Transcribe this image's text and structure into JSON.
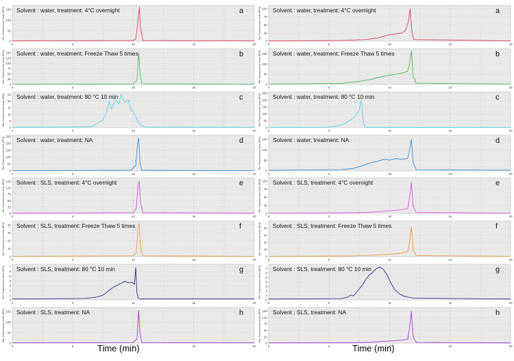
{
  "figure": {
    "x_axis_title": "Time (min)",
    "y_axis_label": "Rel. Fluorescence Units (RFU)",
    "x_ticks": [
      "0",
      "5",
      "10",
      "15",
      "20"
    ]
  },
  "chart_data": [
    {
      "type": "line",
      "column": "left",
      "letter": "a",
      "label": "Solvent : water, treatment: 4°C overnight",
      "color": "#e0405a",
      "xlim": [
        0,
        20
      ],
      "ylim": [
        0,
        170
      ],
      "yticks": [
        "0",
        "50",
        "100",
        "150"
      ],
      "series": [
        {
          "x": [
            0,
            10.0,
            10.2,
            10.35,
            10.5,
            10.6,
            10.8,
            20
          ],
          "y": [
            2,
            3,
            10,
            80,
            162,
            60,
            3,
            2
          ]
        }
      ]
    },
    {
      "type": "line",
      "column": "left",
      "letter": "b",
      "label": "Solvent : water, treatment: Freeze Thaw 5 times",
      "color": "#4fb860",
      "xlim": [
        0,
        20
      ],
      "ylim": [
        0,
        170
      ],
      "yticks": [
        "0",
        "25",
        "50",
        "75",
        "100",
        "125",
        "150"
      ],
      "series": [
        {
          "x": [
            0,
            10.0,
            10.3,
            10.45,
            10.55,
            10.7,
            20
          ],
          "y": [
            1,
            2,
            20,
            150,
            60,
            3,
            1
          ]
        }
      ]
    },
    {
      "type": "line",
      "column": "left",
      "letter": "c",
      "label": "Solvent : water, treatment: 80 °C 10 min",
      "color": "#5ad8e8",
      "xlim": [
        0,
        20
      ],
      "ylim": [
        0,
        27
      ],
      "yticks": [
        "0",
        "5",
        "10",
        "15",
        "20",
        "25"
      ],
      "series": [
        {
          "x": [
            0,
            6.5,
            7.0,
            7.5,
            7.8,
            8.0,
            8.2,
            8.5,
            8.8,
            9.0,
            9.3,
            9.6,
            9.8,
            10.0,
            10.3,
            10.6,
            11,
            20
          ],
          "y": [
            0.3,
            0.6,
            3,
            6,
            12,
            20,
            14,
            22,
            18,
            25,
            19,
            21,
            14,
            12,
            6,
            2,
            0.5,
            0.3
          ]
        }
      ]
    },
    {
      "type": "line",
      "column": "left",
      "letter": "d",
      "label": "Solvent : water, treatment: NA",
      "color": "#3d8fd0",
      "xlim": [
        0,
        20
      ],
      "ylim": [
        0,
        260
      ],
      "yticks": [
        "0",
        "50",
        "100",
        "150",
        "200",
        "250"
      ],
      "series": [
        {
          "x": [
            0,
            9.8,
            10.2,
            10.35,
            10.45,
            10.55,
            10.7,
            20
          ],
          "y": [
            2,
            5,
            40,
            200,
            240,
            60,
            5,
            2
          ]
        }
      ]
    },
    {
      "type": "line",
      "column": "left",
      "letter": "e",
      "label": "Solvent : SLS, treatment: 4°C overnight",
      "color": "#d84ee0",
      "xlim": [
        0,
        20
      ],
      "ylim": [
        0,
        140
      ],
      "yticks": [
        "0",
        "25",
        "50",
        "75",
        "100",
        "125"
      ],
      "series": [
        {
          "x": [
            0,
            10.0,
            10.25,
            10.4,
            10.5,
            10.6,
            10.8,
            20
          ],
          "y": [
            1,
            3,
            20,
            115,
            125,
            40,
            3,
            1
          ]
        }
      ]
    },
    {
      "type": "line",
      "column": "left",
      "letter": "f",
      "label": "Solvent : SLS, treatment: Freeze Thaw 5 times",
      "color": "#f0a040",
      "xlim": [
        0,
        20
      ],
      "ylim": [
        0,
        45
      ],
      "yticks": [
        "0",
        "10",
        "20",
        "30",
        "40"
      ],
      "series": [
        {
          "x": [
            0,
            10.0,
            10.25,
            10.4,
            10.5,
            10.6,
            10.8,
            20
          ],
          "y": [
            0.5,
            1,
            5,
            38,
            42,
            10,
            1,
            0.5
          ]
        }
      ]
    },
    {
      "type": "line",
      "column": "left",
      "letter": "g",
      "label": "Solvent : SLS, treatment: 80 °C 10 min",
      "color": "#2a2a8c",
      "xlim": [
        0,
        20
      ],
      "ylim": [
        0,
        7.5
      ],
      "yticks": [
        "0",
        "1",
        "2",
        "3",
        "4",
        "5",
        "6",
        "7"
      ],
      "series": [
        {
          "x": [
            0,
            6.0,
            7.0,
            7.5,
            8.0,
            8.3,
            8.6,
            9.0,
            9.3,
            9.6,
            9.9,
            10.1,
            10.2,
            10.3,
            10.4,
            10.6,
            20
          ],
          "y": [
            0.2,
            0.3,
            0.6,
            1.0,
            2.0,
            2.6,
            3.0,
            3.5,
            3.9,
            3.6,
            3.7,
            3.3,
            6.8,
            1.5,
            0.4,
            0.2,
            0.2
          ]
        }
      ]
    },
    {
      "type": "line",
      "column": "left",
      "letter": "h",
      "label": "Solvent : SLS, treatment: NA",
      "color": "#a040d0",
      "xlim": [
        0,
        20
      ],
      "ylim": [
        0,
        170
      ],
      "yticks": [
        "0",
        "50",
        "100",
        "150"
      ],
      "series": [
        {
          "x": [
            0,
            10.0,
            10.3,
            10.45,
            10.55,
            10.7,
            20
          ],
          "y": [
            2,
            3,
            20,
            155,
            50,
            3,
            2
          ]
        }
      ]
    },
    {
      "type": "line",
      "column": "right",
      "letter": "a",
      "label": "Solvent : water, treatment: 4°C overnight",
      "color": "#e0405a",
      "xlim": [
        0,
        20
      ],
      "ylim": [
        0,
        110
      ],
      "yticks": [
        "0",
        "25",
        "50",
        "75",
        "100"
      ],
      "series": [
        {
          "x": [
            0,
            6.0,
            8.0,
            9.0,
            9.5,
            10.0,
            10.5,
            11.0,
            11.3,
            11.55,
            11.7,
            11.85,
            12.0,
            20
          ],
          "y": [
            1,
            2,
            5,
            10,
            15,
            20,
            22,
            25,
            32,
            60,
            100,
            25,
            5,
            1
          ]
        }
      ]
    },
    {
      "type": "line",
      "column": "right",
      "letter": "b",
      "label": "Solvent : water, treatment: Freeze Thaw 5 times",
      "color": "#4fb860",
      "xlim": [
        0,
        20
      ],
      "ylim": [
        0,
        175
      ],
      "yticks": [
        "0",
        "50",
        "100",
        "150"
      ],
      "series": [
        {
          "x": [
            0,
            6.0,
            7.5,
            8.5,
            9.5,
            10.0,
            10.5,
            11.0,
            11.5,
            11.65,
            11.8,
            11.95,
            12.2,
            20
          ],
          "y": [
            2,
            5,
            15,
            25,
            40,
            45,
            50,
            55,
            65,
            100,
            165,
            40,
            6,
            2
          ]
        }
      ]
    },
    {
      "type": "line",
      "column": "right",
      "letter": "c",
      "label": "Solvent : water, treatment: 80 °C 10 min",
      "color": "#5ad8e8",
      "xlim": [
        0,
        20
      ],
      "ylim": [
        0,
        260
      ],
      "yticks": [
        "0",
        "50",
        "100",
        "150",
        "200",
        "250"
      ],
      "series": [
        {
          "x": [
            0,
            5.0,
            5.5,
            6.0,
            6.5,
            7.0,
            7.3,
            7.5,
            7.65,
            7.75,
            7.85,
            8.0,
            20
          ],
          "y": [
            2,
            4,
            10,
            20,
            40,
            70,
            100,
            130,
            200,
            120,
            30,
            3,
            2
          ]
        }
      ]
    },
    {
      "type": "line",
      "column": "right",
      "letter": "d",
      "label": "Solvent : water, treatment: NA",
      "color": "#3d8fd0",
      "xlim": [
        0,
        20
      ],
      "ylim": [
        0,
        170
      ],
      "yticks": [
        "0",
        "50",
        "100",
        "150"
      ],
      "series": [
        {
          "x": [
            0,
            6.0,
            7.0,
            7.5,
            8.0,
            8.5,
            9.0,
            9.5,
            10.0,
            10.5,
            11.0,
            11.5,
            11.65,
            11.8,
            11.95,
            12.2,
            20
          ],
          "y": [
            3,
            6,
            12,
            20,
            30,
            40,
            45,
            55,
            52,
            58,
            55,
            60,
            100,
            150,
            40,
            6,
            3
          ]
        }
      ]
    },
    {
      "type": "line",
      "column": "right",
      "letter": "e",
      "label": "Solvent : SLS, treatment: 4°C overnight",
      "color": "#d84ee0",
      "xlim": [
        0,
        20
      ],
      "ylim": [
        0,
        110
      ],
      "yticks": [
        "0",
        "25",
        "50",
        "75",
        "100"
      ],
      "series": [
        {
          "x": [
            0,
            7.0,
            8.5,
            9.5,
            10.5,
            11.0,
            11.5,
            11.65,
            11.8,
            11.95,
            12.2,
            20
          ],
          "y": [
            1,
            2,
            4,
            7,
            10,
            12,
            15,
            50,
            95,
            20,
            3,
            1
          ]
        }
      ]
    },
    {
      "type": "line",
      "column": "right",
      "letter": "f",
      "label": "Solvent : SLS, treatment: Freeze Thaw 5 times",
      "color": "#f0a040",
      "xlim": [
        0,
        20
      ],
      "ylim": [
        0,
        50
      ],
      "yticks": [
        "0",
        "10",
        "20",
        "30",
        "40"
      ],
      "series": [
        {
          "x": [
            0,
            7.0,
            8.5,
            9.5,
            10.5,
            11.0,
            11.5,
            11.65,
            11.8,
            11.95,
            12.2,
            20
          ],
          "y": [
            0.5,
            1,
            2,
            3,
            4,
            5,
            7,
            20,
            42,
            10,
            1.5,
            0.5
          ]
        }
      ]
    },
    {
      "type": "line",
      "column": "right",
      "letter": "g",
      "label": "Solvent : SLS, treatment: 80 °C 10 min",
      "color": "#2a2a8c",
      "xlim": [
        0,
        20
      ],
      "ylim": [
        0,
        8
      ],
      "yticks": [
        "0",
        "1",
        "2",
        "3",
        "4",
        "5",
        "6",
        "7"
      ],
      "series": [
        {
          "x": [
            0,
            6.0,
            6.5,
            6.8,
            7.0,
            7.2,
            7.5,
            7.8,
            8.0,
            8.3,
            8.6,
            8.9,
            9.2,
            9.5,
            9.8,
            10.1,
            10.4,
            10.8,
            11.2,
            12,
            20
          ],
          "y": [
            0.2,
            0.3,
            0.6,
            1.1,
            0.9,
            1.5,
            2.5,
            3.5,
            4.5,
            5.5,
            6.2,
            7.0,
            7.4,
            6.8,
            5.6,
            3.8,
            2.4,
            1.4,
            0.8,
            0.4,
            0.2
          ]
        }
      ]
    },
    {
      "type": "line",
      "column": "right",
      "letter": "h",
      "label": "Solvent : SLS, treatment: NA",
      "color": "#a040d0",
      "xlim": [
        0,
        20
      ],
      "ylim": [
        0,
        140
      ],
      "yticks": [
        "0",
        "25",
        "50",
        "75",
        "100",
        "125"
      ],
      "series": [
        {
          "x": [
            0,
            7.0,
            8.5,
            9.5,
            10.5,
            11.0,
            11.5,
            11.65,
            11.8,
            11.95,
            12.2,
            20
          ],
          "y": [
            1,
            2,
            4,
            7,
            10,
            12,
            16,
            60,
            125,
            25,
            3,
            1
          ]
        }
      ]
    }
  ]
}
